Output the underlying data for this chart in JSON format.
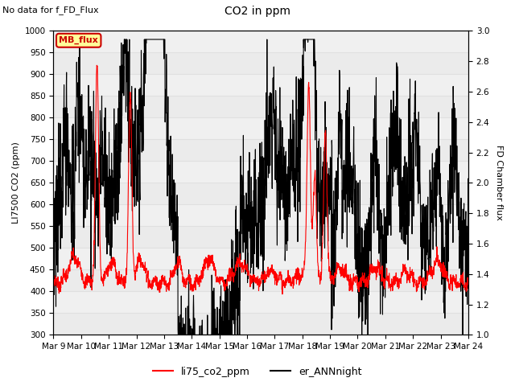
{
  "title": "CO2 in ppm",
  "subtitle": "No data for f_FD_Flux",
  "ylabel_left": "LI7500 CO2 (ppm)",
  "ylabel_right": "FD Chamber flux",
  "ylim_left": [
    300,
    1000
  ],
  "ylim_right": [
    1.0,
    3.0
  ],
  "yticks_left": [
    300,
    350,
    400,
    450,
    500,
    550,
    600,
    650,
    700,
    750,
    800,
    850,
    900,
    950,
    1000
  ],
  "yticks_right": [
    1.0,
    1.2,
    1.4,
    1.6,
    1.8,
    2.0,
    2.2,
    2.4,
    2.6,
    2.8,
    3.0
  ],
  "xtick_labels": [
    "Mar 9",
    "Mar 10",
    "Mar 11",
    "Mar 12",
    "Mar 13",
    "Mar 14",
    "Mar 15",
    "Mar 16",
    "Mar 17",
    "Mar 18",
    "Mar 19",
    "Mar 20",
    "Mar 21",
    "Mar 22",
    "Mar 23",
    "Mar 24"
  ],
  "legend_labels": [
    "li75_co2_ppm",
    "er_ANNnight"
  ],
  "line_colors": [
    "red",
    "black"
  ],
  "MB_flux_label": "MB_flux",
  "MB_flux_color": "#cc0000",
  "MB_flux_bg": "#ffff99",
  "grid_color": "#e0e0e0",
  "background_color": "#f0f0f0",
  "n_points": 2000
}
